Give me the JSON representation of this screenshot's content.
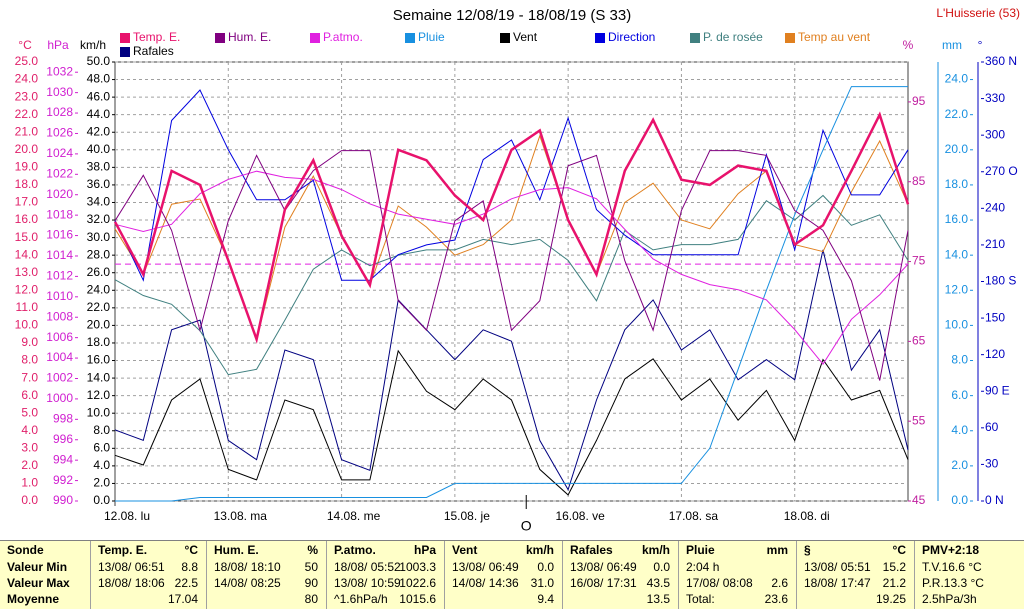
{
  "chart_data": {
    "type": "line",
    "title": "Semaine 12/08/19 - 18/08/19 (S 33)",
    "location": "L'Huisserie (53)",
    "x": [
      0,
      0.25,
      0.5,
      0.75,
      1,
      1.25,
      1.5,
      1.75,
      2,
      2.25,
      2.5,
      2.75,
      3,
      3.25,
      3.5,
      3.75,
      4,
      4.25,
      4.5,
      4.75,
      5,
      5.25,
      5.5,
      5.75,
      6,
      6.25,
      6.5,
      6.75,
      7
    ],
    "xlim": [
      0,
      7
    ],
    "xticks": [
      {
        "value": 0,
        "label": "12.08. lu"
      },
      {
        "value": 1,
        "label": "13.08. ma"
      },
      {
        "value": 2,
        "label": "14.08. me"
      },
      {
        "value": 3,
        "label": "15.08. je"
      },
      {
        "value": 4,
        "label": "16.08. ve"
      },
      {
        "value": 5,
        "label": "17.08. sa"
      },
      {
        "value": 6,
        "label": "18.08. di"
      }
    ],
    "y_label": "°C",
    "y_color": "#e0206a",
    "ylim": [
      0,
      25
    ],
    "yticks": [
      {
        "value": 0,
        "label": "0.0"
      },
      {
        "value": 1,
        "label": "1.0"
      },
      {
        "value": 2,
        "label": "2.0"
      },
      {
        "value": 3,
        "label": "3.0"
      },
      {
        "value": 4,
        "label": "4.0"
      },
      {
        "value": 5,
        "label": "5.0"
      },
      {
        "value": 6,
        "label": "6.0"
      },
      {
        "value": 7,
        "label": "7.0"
      },
      {
        "value": 8,
        "label": "8.0"
      },
      {
        "value": 9,
        "label": "9.0"
      },
      {
        "value": 10,
        "label": "10.0"
      },
      {
        "value": 11,
        "label": "11.0"
      },
      {
        "value": 12,
        "label": "12.0"
      },
      {
        "value": 13,
        "label": "13.0"
      },
      {
        "value": 14,
        "label": "14.0"
      },
      {
        "value": 15,
        "label": "15.0"
      },
      {
        "value": 16,
        "label": "16.0"
      },
      {
        "value": 17,
        "label": "17.0"
      },
      {
        "value": 18,
        "label": "18.0"
      },
      {
        "value": 19,
        "label": "19.0"
      },
      {
        "value": 20,
        "label": "20.0"
      },
      {
        "value": 21,
        "label": "21.0"
      },
      {
        "value": 22,
        "label": "22.0"
      },
      {
        "value": 23,
        "label": "23.0"
      },
      {
        "value": 24,
        "label": "24.0"
      },
      {
        "value": 25,
        "label": "25.0"
      }
    ],
    "y2_label": "hPa",
    "y2_color": "#d020d0",
    "y2lim": [
      990,
      1033
    ],
    "y2ticks": [
      990,
      992,
      994,
      996,
      998,
      1000,
      1002,
      1004,
      1006,
      1008,
      1010,
      1012,
      1014,
      1016,
      1018,
      1020,
      1022,
      1024,
      1026,
      1028,
      1030,
      1032
    ],
    "y3_label": "km/h",
    "y3_color": "#000000",
    "y3lim": [
      0,
      50
    ],
    "y3ticks": [
      {
        "value": 0,
        "label": "0.0"
      },
      {
        "value": 2,
        "label": "2.0"
      },
      {
        "value": 4,
        "label": "4.0"
      },
      {
        "value": 6,
        "label": "6.0"
      },
      {
        "value": 8,
        "label": "8.0"
      },
      {
        "value": 10,
        "label": "10.0"
      },
      {
        "value": 12,
        "label": "12.0"
      },
      {
        "value": 14,
        "label": "14.0"
      },
      {
        "value": 16,
        "label": "16.0"
      },
      {
        "value": 18,
        "label": "18.0"
      },
      {
        "value": 20,
        "label": "20.0"
      },
      {
        "value": 22,
        "label": "22.0"
      },
      {
        "value": 24,
        "label": "24.0"
      },
      {
        "value": 26,
        "label": "26.0"
      },
      {
        "value": 28,
        "label": "28.0"
      },
      {
        "value": 30,
        "label": "30.0"
      },
      {
        "value": 32,
        "label": "32.0"
      },
      {
        "value": 34,
        "label": "34.0"
      },
      {
        "value": 36,
        "label": "36.0"
      },
      {
        "value": 38,
        "label": "38.0"
      },
      {
        "value": 40,
        "label": "40.0"
      },
      {
        "value": 42,
        "label": "42.0"
      },
      {
        "value": 44,
        "label": "44.0"
      },
      {
        "value": 46,
        "label": "46.0"
      },
      {
        "value": 48,
        "label": "48.0"
      },
      {
        "value": 50,
        "label": "50.0"
      }
    ],
    "y4_label": "%",
    "y4_color": "#c020a0",
    "y4lim": [
      45,
      100
    ],
    "y4ticks": [
      45,
      55,
      65,
      75,
      85,
      95
    ],
    "y5_label": "mm",
    "y5_color": "#1890e0",
    "y5lim": [
      0,
      25
    ],
    "y5ticks": [
      {
        "value": 0,
        "label": "0.0"
      },
      {
        "value": 2,
        "label": "2.0"
      },
      {
        "value": 4,
        "label": "4.0"
      },
      {
        "value": 6,
        "label": "6.0"
      },
      {
        "value": 8,
        "label": "8.0"
      },
      {
        "value": 10,
        "label": "10.0"
      },
      {
        "value": 12,
        "label": "12.0"
      },
      {
        "value": 14,
        "label": "14.0"
      },
      {
        "value": 16,
        "label": "16.0"
      },
      {
        "value": 18,
        "label": "18.0"
      },
      {
        "value": 20,
        "label": "20.0"
      },
      {
        "value": 22,
        "label": "22.0"
      },
      {
        "value": 24,
        "label": "24.0"
      }
    ],
    "y6_label": "°",
    "y6_color": "#0000c0",
    "y6lim": [
      0,
      360
    ],
    "y6ticks": [
      {
        "value": 360,
        "label": "360 N"
      },
      330,
      300,
      {
        "value": 270,
        "label": "270 O"
      },
      240,
      210,
      {
        "value": 180,
        "label": "180 S"
      },
      150,
      120,
      {
        "value": 90,
        "label": "90 E"
      },
      60,
      30,
      {
        "value": 0,
        "label": "0 N"
      }
    ],
    "grid": true,
    "reference_line": {
      "value": 1013.2,
      "axis": "y2",
      "color": "#e020e0"
    },
    "cursor_label": "O",
    "cursor_x": 3.63,
    "series": [
      {
        "name": "Temp. E.",
        "color": "#e8126c",
        "axis": "y",
        "values": [
          15.9,
          12.9,
          18.8,
          18.0,
          13.7,
          9.2,
          16.6,
          19.4,
          15.1,
          12.3,
          20.0,
          19.4,
          17.4,
          16.0,
          20.0,
          21.1,
          16.0,
          12.9,
          18.8,
          21.7,
          18.3,
          18.0,
          19.1,
          18.8,
          14.6,
          15.7,
          18.8,
          22.0,
          16.9
        ]
      },
      {
        "name": "Hum. E.",
        "color": "#800080",
        "axis": "y4",
        "values": [
          80.1,
          85.8,
          78.9,
          66.4,
          80.1,
          88.3,
          81.4,
          86.4,
          88.9,
          88.9,
          70.1,
          66.4,
          80.1,
          82.6,
          66.4,
          70.1,
          87.0,
          88.3,
          75.1,
          66.4,
          81.4,
          88.9,
          88.9,
          88.3,
          81.4,
          78.9,
          72.6,
          60.1,
          78.9
        ]
      },
      {
        "name": "P.atmo.",
        "color": "#e020e0",
        "axis": "y2",
        "values": [
          1017.1,
          1016.4,
          1017.1,
          1020.1,
          1021.5,
          1022.3,
          1021.7,
          1021.5,
          1020.5,
          1019.1,
          1018.1,
          1017.6,
          1017.1,
          1018.1,
          1019.6,
          1020.5,
          1020.7,
          1019.6,
          1016.6,
          1013.7,
          1012.2,
          1011.2,
          1010.7,
          1009.7,
          1006.8,
          1003.4,
          1007.8,
          1010.2,
          1013.2
        ]
      },
      {
        "name": "Pluie",
        "color": "#1890e0",
        "axis": "y5",
        "values": [
          0,
          0,
          0,
          0.2,
          0.2,
          0.2,
          0.2,
          0.2,
          0.2,
          0.2,
          0.2,
          0.2,
          1.0,
          1.0,
          1.0,
          1.0,
          1.0,
          1.0,
          1.0,
          1.0,
          1.0,
          3.0,
          7.5,
          12.0,
          16.3,
          20.0,
          23.6,
          23.6,
          23.6
        ]
      },
      {
        "name": "Vent",
        "color": "#000000",
        "axis": "y3",
        "values": [
          5.2,
          4.1,
          11.5,
          13.9,
          3.6,
          2.4,
          11.5,
          10.4,
          2.4,
          2.4,
          17.1,
          12.5,
          10.4,
          13.9,
          11.5,
          3.6,
          0.7,
          6.9,
          13.9,
          16.2,
          11.5,
          13.9,
          9.2,
          12.6,
          6.9,
          16.1,
          11.5,
          12.6,
          4.7
        ]
      },
      {
        "name": "Direction",
        "color": "#0000e0",
        "axis": "y6",
        "values": [
          230,
          181,
          312,
          337,
          288,
          247,
          247,
          263,
          181,
          181,
          202,
          210,
          214,
          280,
          296,
          247,
          314,
          239,
          218,
          202,
          202,
          202,
          202,
          284,
          206,
          304,
          251,
          251,
          288
        ]
      },
      {
        "name": "P. de rosée",
        "color": "#408080",
        "axis": "y",
        "values": [
          12.6,
          11.7,
          11.2,
          9.7,
          7.2,
          7.5,
          10.3,
          13.2,
          14.3,
          13.4,
          14.0,
          14.3,
          14.3,
          14.9,
          14.6,
          14.9,
          13.7,
          11.4,
          15.4,
          14.3,
          14.6,
          14.6,
          14.9,
          17.1,
          16.0,
          17.4,
          15.7,
          16.3,
          13.7
        ]
      },
      {
        "name": "Temp au vent",
        "color": "#e08020",
        "axis": "y",
        "values": [
          15.5,
          12.9,
          16.9,
          17.2,
          13.7,
          9.2,
          15.6,
          18.5,
          15.1,
          12.3,
          16.8,
          15.6,
          14.0,
          14.6,
          16.0,
          20.8,
          16.0,
          12.9,
          17.0,
          18.1,
          16.0,
          15.5,
          17.5,
          18.8,
          14.6,
          14.2,
          17.6,
          20.5,
          16.9
        ]
      },
      {
        "name": "Rafales",
        "color": "#000080",
        "axis": "y3",
        "values": [
          8.1,
          6.9,
          19.5,
          20.6,
          6.9,
          4.7,
          17.2,
          16.1,
          4.7,
          3.5,
          22.9,
          19.5,
          16.1,
          19.5,
          18.2,
          6.9,
          1.3,
          11.5,
          19.5,
          22.9,
          17.2,
          19.5,
          13.8,
          16.1,
          13.8,
          28.6,
          14.9,
          19.5,
          5.8
        ]
      }
    ]
  },
  "table": {
    "panels": [
      {
        "title": "Sonde",
        "rows": [
          [
            "Valeur Min"
          ],
          [
            "Valeur Max"
          ],
          [
            "Moyenne"
          ]
        ]
      },
      {
        "title": "Temp. E.",
        "unit": "°C",
        "rows": [
          [
            "13/08/ 06:51",
            "8.8"
          ],
          [
            "18/08/ 18:06",
            "22.5"
          ],
          [
            "17.04"
          ]
        ]
      },
      {
        "title": "Hum. E.",
        "unit": "%",
        "rows": [
          [
            "18/08/ 18:10",
            "50"
          ],
          [
            "14/08/ 08:25",
            "90"
          ],
          [
            "80"
          ]
        ]
      },
      {
        "title": "P.atmo.",
        "unit": "hPa",
        "rows": [
          [
            "18/08/ 05:52",
            "1003.3"
          ],
          [
            "13/08/ 10:59",
            "1022.6"
          ],
          [
            "^1.6hPa/h",
            "1015.6"
          ]
        ]
      },
      {
        "title": "Vent",
        "unit": "km/h",
        "rows": [
          [
            "13/08/ 06:49",
            "0.0"
          ],
          [
            "14/08/ 14:36",
            "31.0"
          ],
          [
            "9.4"
          ]
        ]
      },
      {
        "title": "Rafales",
        "unit": "km/h",
        "rows": [
          [
            "13/08/ 06:49",
            "0.0"
          ],
          [
            "16/08/ 17:31",
            "43.5"
          ],
          [
            "13.5"
          ]
        ]
      },
      {
        "title": "Pluie",
        "unit": "mm",
        "rows": [
          [
            "2:04 h"
          ],
          [
            "17/08/ 08:08",
            "2.6"
          ],
          [
            "Total:",
            "23.6"
          ]
        ]
      },
      {
        "title": "§",
        "unit": "°C",
        "rows": [
          [
            "13/08/ 05:51",
            "15.2"
          ],
          [
            "18/08/ 17:47",
            "21.2"
          ],
          [
            "19.25"
          ]
        ]
      },
      {
        "title": "PMV+2:18",
        "rows": [
          [
            "T.V.16.6 °C"
          ],
          [
            "P.R.13.3 °C"
          ],
          [
            "2.5hPa/3h"
          ]
        ]
      }
    ]
  }
}
